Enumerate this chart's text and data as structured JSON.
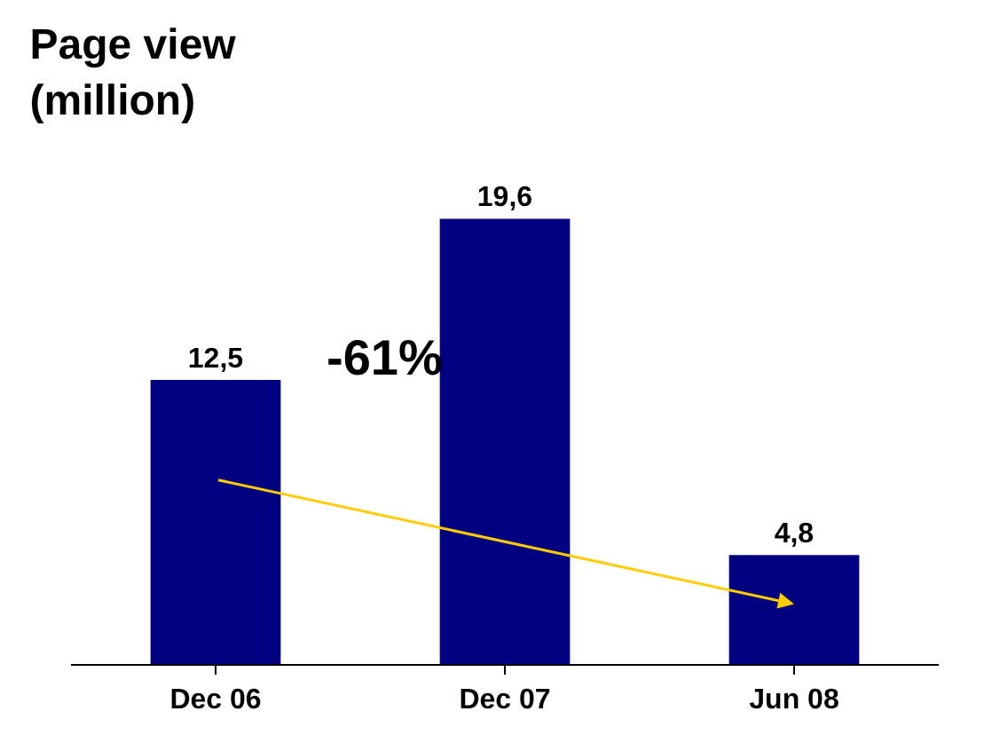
{
  "chart_data": {
    "type": "bar",
    "title": "Page view\n(million)",
    "categories": [
      "Dec 06",
      "Dec 07",
      "Jun 08"
    ],
    "values": [
      12.5,
      19.6,
      4.8
    ],
    "color": "#000080",
    "value_labels": [
      "12,5",
      "19,6",
      "4,8"
    ],
    "annotations": [
      "-61%"
    ]
  }
}
